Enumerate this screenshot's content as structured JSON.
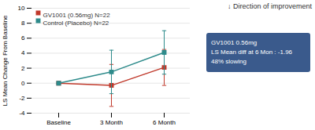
{
  "chart_data": {
    "type": "line",
    "categories": [
      "Baseline",
      "3 Month",
      "6 Month"
    ],
    "series": [
      {
        "name": "GV1001 (0.56mg) N=22",
        "color": "#c0392b",
        "marker": "square",
        "values": [
          0.0,
          -0.3,
          2.1
        ],
        "err_low": [
          0.0,
          2.8,
          2.4
        ],
        "err_high": [
          0.0,
          2.8,
          2.4
        ]
      },
      {
        "name": "Control (Placebo) N=22",
        "color": "#2e8b8b",
        "marker": "square",
        "values": [
          0.0,
          1.5,
          4.1
        ],
        "err_low": [
          0.0,
          2.9,
          2.9
        ],
        "err_high": [
          0.0,
          2.9,
          2.9
        ]
      }
    ],
    "ylabel": "LS Mean Change From Baseline",
    "ylim": [
      -4,
      10
    ],
    "yticks": [
      -4,
      -2,
      0,
      2,
      4,
      6,
      8,
      10
    ],
    "grid": true,
    "legend": "upper left",
    "annotations": [
      {
        "text": "GV1001 0.56mg\nLS Mean diff at 6 Mon : -1.96\n48% slowing",
        "color": "#3a5a8c"
      },
      {
        "text": "↓ Direction of improvement"
      }
    ]
  }
}
